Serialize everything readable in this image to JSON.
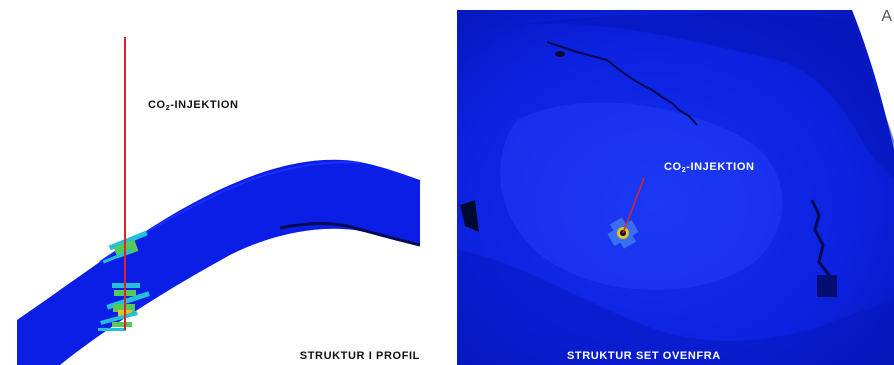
{
  "left_panel": {
    "annotation": "CO",
    "annotation_sub": "2",
    "annotation_rest": "-INJEKTION",
    "caption": "STRUKTUR I PROFIL"
  },
  "right_panel": {
    "annotation": "CO",
    "annotation_sub": "2",
    "annotation_rest": "-INJEKTION",
    "caption": "STRUKTUR SET OVENFRA",
    "corner_letter": "A"
  },
  "colors": {
    "structure_blue": "#0a1ee6",
    "dark_blue": "#0614a8",
    "light_blue": "#3a6ff0",
    "injection_line": "#d8262a",
    "plume_green": "#57c85a",
    "plume_cyan": "#23c0d8",
    "plume_yellow": "#e6c21e"
  }
}
